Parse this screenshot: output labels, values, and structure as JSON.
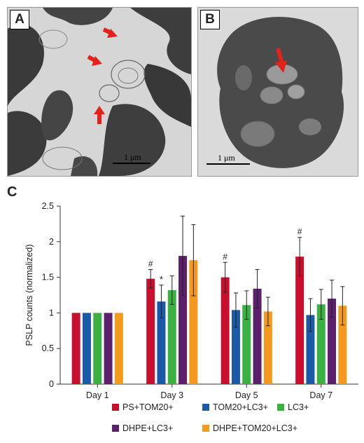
{
  "panels": {
    "a": {
      "letter": "A",
      "scale": "1 μm"
    },
    "b": {
      "letter": "B",
      "scale": "1 μm"
    },
    "c": {
      "letter": "C"
    }
  },
  "colors": {
    "red": "#c8102e",
    "blue": "#1a5aa6",
    "green": "#3cb043",
    "purple": "#5b1f6b",
    "orange": "#f39a1d",
    "arrow": "#e3231b"
  },
  "chart_data": {
    "type": "bar",
    "ylabel": "PSLP counts (normalized)",
    "xlabel": "",
    "ylim": [
      0,
      2.5
    ],
    "yticks": [
      "0",
      "0.5",
      "1",
      "1.5",
      "2",
      "2.5"
    ],
    "categories": [
      "Day 1",
      "Day 3",
      "Day 5",
      "Day 7"
    ],
    "series": [
      {
        "name": "PS+TOM20+",
        "color": "#c8102e",
        "values": [
          1.0,
          1.48,
          1.5,
          1.79
        ],
        "err": [
          0,
          0.13,
          0.21,
          0.27
        ]
      },
      {
        "name": "TOM20+LC3+",
        "color": "#1a5aa6",
        "values": [
          1.0,
          1.16,
          1.04,
          0.97
        ],
        "err": [
          0,
          0.23,
          0.24,
          0.23
        ]
      },
      {
        "name": "LC3+",
        "color": "#3cb043",
        "values": [
          1.0,
          1.32,
          1.11,
          1.12
        ],
        "err": [
          0,
          0.2,
          0.2,
          0.21
        ]
      },
      {
        "name": "DHPE+LC3+",
        "color": "#5b1f6b",
        "values": [
          1.0,
          1.8,
          1.34,
          1.2
        ],
        "err": [
          0,
          0.56,
          0.27,
          0.26
        ]
      },
      {
        "name": "DHPE+TOM20+LC3+",
        "color": "#f39a1d",
        "values": [
          1.0,
          1.74,
          1.02,
          1.1
        ],
        "err": [
          0,
          0.5,
          0.2,
          0.27
        ]
      }
    ],
    "annotations": [
      {
        "text": "#",
        "category": "Day 3",
        "series": "PS+TOM20+"
      },
      {
        "text": "*",
        "category": "Day 3",
        "series": "TOM20+LC3+"
      },
      {
        "text": "#",
        "category": "Day 5",
        "series": "PS+TOM20+"
      },
      {
        "text": "#",
        "category": "Day 7",
        "series": "PS+TOM20+"
      }
    ],
    "grid": false,
    "legend_position": "bottom"
  }
}
